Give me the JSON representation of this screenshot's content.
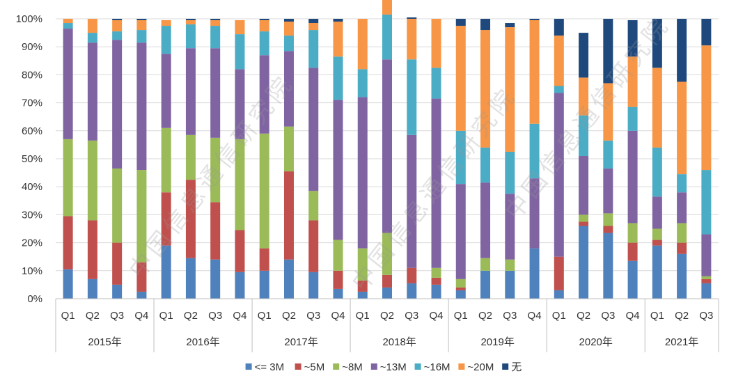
{
  "chart_data": {
    "type": "stacked-bar-100",
    "watermark": "中国信息通信研究院",
    "yaxis": {
      "ticks": [
        "0%",
        "10%",
        "20%",
        "30%",
        "40%",
        "50%",
        "60%",
        "70%",
        "80%",
        "90%",
        "100%"
      ],
      "ylim": [
        0,
        100
      ]
    },
    "groups": [
      {
        "label": "2015年",
        "quarters": [
          "Q1",
          "Q2",
          "Q3",
          "Q4"
        ]
      },
      {
        "label": "2016年",
        "quarters": [
          "Q1",
          "Q2",
          "Q3",
          "Q4"
        ]
      },
      {
        "label": "2017年",
        "quarters": [
          "Q1",
          "Q2",
          "Q3",
          "Q4"
        ]
      },
      {
        "label": "2018年",
        "quarters": [
          "Q1",
          "Q2",
          "Q3",
          "Q4"
        ]
      },
      {
        "label": "2019年",
        "quarters": [
          "Q1",
          "Q2",
          "Q3",
          "Q4"
        ]
      },
      {
        "label": "2020年",
        "quarters": [
          "Q1",
          "Q2",
          "Q3",
          "Q4"
        ]
      },
      {
        "label": "2021年",
        "quarters": [
          "Q1",
          "Q2",
          "Q3"
        ]
      }
    ],
    "series": [
      {
        "name": "<= 3M",
        "color": "#4f81bd",
        "values": [
          10.5,
          7,
          5,
          2.5,
          19,
          14.5,
          14,
          9.5,
          10,
          14,
          9.5,
          3.5,
          2.5,
          4,
          5.5,
          5,
          3,
          10,
          10,
          18,
          3,
          26,
          23.5,
          13.5,
          19,
          16,
          5.5
        ]
      },
      {
        "name": "~5M",
        "color": "#c0504d",
        "values": [
          19,
          21,
          15,
          10.5,
          19,
          28,
          20.5,
          15,
          8,
          31.5,
          18.5,
          6.5,
          4,
          4.5,
          5.5,
          2.5,
          1,
          0,
          0,
          0,
          12,
          1.5,
          2.5,
          6.5,
          2,
          4,
          1.5
        ]
      },
      {
        "name": "~8M",
        "color": "#9bbb59",
        "values": [
          27.5,
          28.5,
          26.5,
          33,
          23,
          16,
          23,
          32.5,
          41,
          16,
          10.5,
          11,
          11.5,
          15,
          0,
          3.5,
          3,
          4.5,
          4,
          0,
          0,
          2.5,
          4.5,
          7,
          4,
          7,
          1
        ]
      },
      {
        "name": "~13M",
        "color": "#8064a2",
        "values": [
          39.5,
          35,
          46,
          45.5,
          26.5,
          31,
          32,
          25,
          28,
          27,
          44,
          50,
          54,
          62,
          47.5,
          60.5,
          34,
          27,
          23.5,
          25,
          58.5,
          21,
          16,
          33,
          11.5,
          11,
          15
        ]
      },
      {
        "name": "~16M",
        "color": "#4bacc6",
        "values": [
          2,
          3.5,
          3,
          4.5,
          10,
          8.5,
          8,
          12.5,
          8.5,
          5.5,
          13.5,
          15.5,
          10,
          16,
          27,
          11,
          19,
          12.5,
          15,
          19.5,
          2.5,
          14.5,
          10,
          8.5,
          17.5,
          6.5,
          23
        ]
      },
      {
        "name": "~20M",
        "color": "#f79646",
        "values": [
          1.5,
          5,
          4,
          3.5,
          2,
          1.5,
          2,
          5,
          4,
          5,
          2.5,
          12.5,
          18,
          10,
          14.5,
          17.5,
          37.5,
          42,
          44.5,
          37,
          18,
          13.5,
          20.5,
          18,
          28.5,
          33,
          44.5
        ]
      },
      {
        "name": "无",
        "color": "#1f497d",
        "values": [
          0,
          0,
          0.5,
          0.5,
          0,
          0.5,
          0.5,
          0,
          0.5,
          1,
          1.5,
          1,
          0,
          0,
          0.5,
          0,
          2.5,
          4,
          1.5,
          0.5,
          6,
          16,
          23,
          13,
          17.5,
          22.5,
          9.5
        ]
      }
    ]
  }
}
